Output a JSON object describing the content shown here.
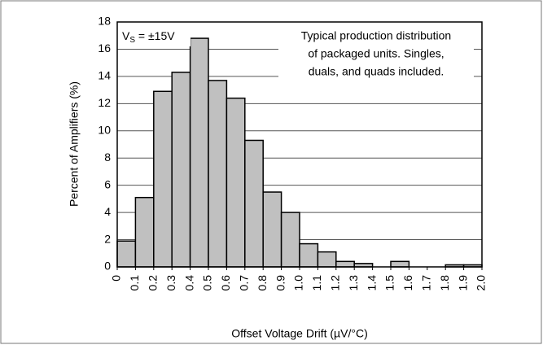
{
  "chart_data": {
    "type": "histogram",
    "xlabel": "Offset Voltage Drift (µV/°C)",
    "ylabel": "Percent of Amplifiers (%)",
    "supply_label": {
      "base": "V",
      "subscript": "S",
      "rest": " = ±15V"
    },
    "note_lines": [
      "Typical production distribution",
      "of packaged units. Singles,",
      "duals, and quads included."
    ],
    "bins": [
      0,
      0.1,
      0.2,
      0.3,
      0.4,
      0.5,
      0.6,
      0.7,
      0.8,
      0.9,
      1.0,
      1.1,
      1.2,
      1.3,
      1.4,
      1.5,
      1.6,
      1.7,
      1.8,
      1.9,
      2.0
    ],
    "values": [
      1.9,
      5.1,
      12.9,
      14.3,
      16.8,
      13.7,
      12.4,
      9.3,
      5.5,
      4.0,
      1.7,
      1.1,
      0.4,
      0.25,
      0,
      0.4,
      0,
      0,
      0.15,
      0.15
    ],
    "color": "#c0c0c0",
    "xlim": [
      0,
      2
    ],
    "ylim": [
      0,
      18
    ],
    "xticks": [
      0,
      0.1,
      0.2,
      0.3,
      0.4,
      0.5,
      0.6,
      0.7,
      0.8,
      0.9,
      {
        "value": 1,
        "label": "1.0"
      },
      1.1,
      1.2,
      1.3,
      1.4,
      1.5,
      1.6,
      1.7,
      1.8,
      1.9,
      {
        "value": 2,
        "label": "2.0"
      }
    ],
    "yticks": [
      0,
      2,
      4,
      6,
      8,
      10,
      12,
      14,
      16,
      18
    ],
    "grid": true
  }
}
